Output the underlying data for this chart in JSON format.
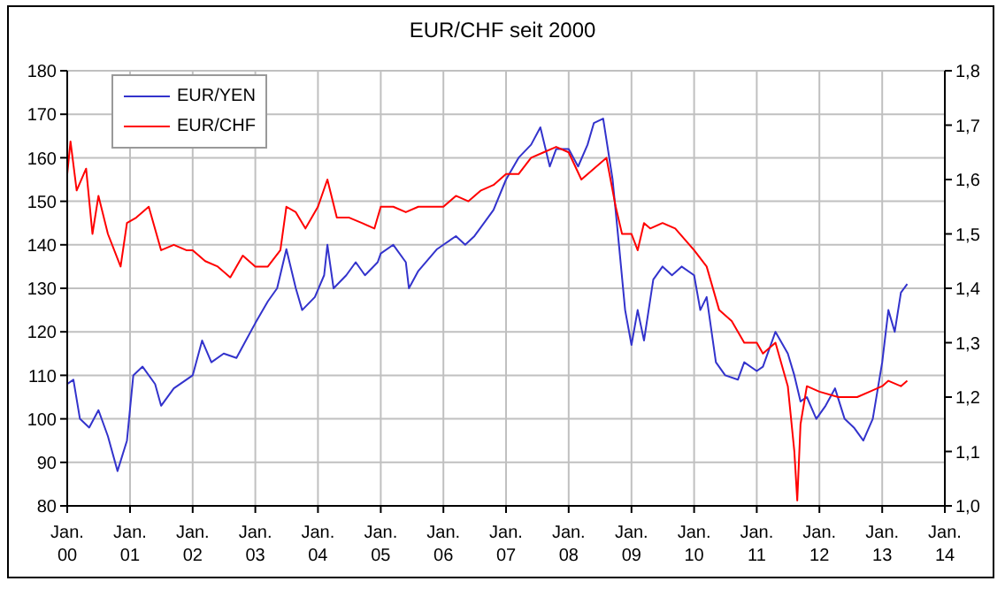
{
  "chart_data": {
    "type": "line",
    "title": "EUR/CHF seit 2000",
    "xlim": [
      "2000-01-01",
      "2014-01-01"
    ],
    "xticks": [
      {
        "value": "2000-01-01",
        "label": "Jan. 00"
      },
      {
        "value": "2001-01-01",
        "label": "Jan. 01"
      },
      {
        "value": "2002-01-01",
        "label": "Jan. 02"
      },
      {
        "value": "2003-01-01",
        "label": "Jan. 03"
      },
      {
        "value": "2004-01-01",
        "label": "Jan. 04"
      },
      {
        "value": "2005-01-01",
        "label": "Jan. 05"
      },
      {
        "value": "2006-01-01",
        "label": "Jan. 06"
      },
      {
        "value": "2007-01-01",
        "label": "Jan. 07"
      },
      {
        "value": "2008-01-01",
        "label": "Jan. 08"
      },
      {
        "value": "2009-01-01",
        "label": "Jan. 09"
      },
      {
        "value": "2010-01-01",
        "label": "Jan. 10"
      },
      {
        "value": "2011-01-01",
        "label": "Jan. 11"
      },
      {
        "value": "2012-01-01",
        "label": "Jan. 12"
      },
      {
        "value": "2013-01-01",
        "label": "Jan. 13"
      },
      {
        "value": "2014-01-01",
        "label": "Jan. 14"
      }
    ],
    "ylim": [
      80,
      180
    ],
    "yticks": [
      80,
      90,
      100,
      110,
      120,
      130,
      140,
      150,
      160,
      170,
      180
    ],
    "y2lim": [
      1.0,
      1.8
    ],
    "y2ticks": [
      {
        "value": 1.0,
        "label": "1,0"
      },
      {
        "value": 1.1,
        "label": "1,1"
      },
      {
        "value": 1.2,
        "label": "1,2"
      },
      {
        "value": 1.3,
        "label": "1,3"
      },
      {
        "value": 1.4,
        "label": "1,4"
      },
      {
        "value": 1.5,
        "label": "1,5"
      },
      {
        "value": 1.6,
        "label": "1,6"
      },
      {
        "value": 1.7,
        "label": "1,7"
      },
      {
        "value": 1.8,
        "label": "1,8"
      }
    ],
    "grid": true,
    "legend": "top left",
    "marker": "none",
    "line_style": "solid",
    "series": [
      {
        "name": "EUR/YEN",
        "color": "#3333cc",
        "x": [
          "2000-01-01",
          "2000-02-06",
          "2000-03-15",
          "2000-05-08",
          "2000-07-01",
          "2000-08-25",
          "2000-10-20",
          "2000-12-14",
          "2001-01-20",
          "2001-03-15",
          "2001-05-27",
          "2001-07-01",
          "2001-09-13",
          "2001-11-25",
          "2002-01-01",
          "2002-02-25",
          "2002-04-20",
          "2002-07-01",
          "2002-09-13",
          "2002-11-07",
          "2003-01-01",
          "2003-03-15",
          "2003-05-08",
          "2003-07-01",
          "2003-08-25",
          "2003-10-01",
          "2003-12-14",
          "2004-02-06",
          "2004-02-25",
          "2004-04-01",
          "2004-06-14",
          "2004-08-08",
          "2004-10-01",
          "2004-12-14",
          "2005-01-01",
          "2005-03-15",
          "2005-05-27",
          "2005-06-14",
          "2005-08-08",
          "2005-11-25",
          "2006-01-01",
          "2006-03-15",
          "2006-05-08",
          "2006-07-01",
          "2006-10-20",
          "2007-01-01",
          "2007-03-15",
          "2007-05-27",
          "2007-07-20",
          "2007-09-13",
          "2007-10-20",
          "2008-01-01",
          "2008-02-25",
          "2008-04-20",
          "2008-05-27",
          "2008-07-20",
          "2008-09-13",
          "2008-10-20",
          "2008-11-25",
          "2009-01-01",
          "2009-02-06",
          "2009-03-15",
          "2009-05-08",
          "2009-07-01",
          "2009-08-25",
          "2009-10-20",
          "2010-01-01",
          "2010-02-06",
          "2010-03-15",
          "2010-05-08",
          "2010-07-01",
          "2010-09-13",
          "2010-10-20",
          "2011-01-01",
          "2011-02-06",
          "2011-04-20",
          "2011-07-01",
          "2011-08-08",
          "2011-09-13",
          "2011-10-20",
          "2011-12-14",
          "2012-02-06",
          "2012-04-01",
          "2012-05-27",
          "2012-07-20",
          "2012-09-13",
          "2012-11-07",
          "2013-01-01",
          "2013-02-06",
          "2013-03-15",
          "2013-04-20",
          "2013-05-27"
        ],
        "values": [
          108,
          109,
          100,
          98,
          102,
          96,
          88,
          95,
          110,
          112,
          108,
          103,
          107,
          109,
          110,
          118,
          113,
          115,
          114,
          118,
          122,
          127,
          130,
          139,
          130,
          125,
          128,
          133,
          140,
          130,
          133,
          136,
          133,
          136,
          138,
          140,
          136,
          130,
          134,
          139,
          140,
          142,
          140,
          142,
          148,
          155,
          160,
          163,
          167,
          158,
          162,
          162,
          158,
          163,
          168,
          169,
          155,
          140,
          125,
          117,
          125,
          118,
          132,
          135,
          133,
          135,
          133,
          125,
          128,
          113,
          110,
          109,
          113,
          111,
          112,
          120,
          115,
          110,
          104,
          105,
          100,
          103,
          107,
          100,
          98,
          95,
          100,
          113,
          125,
          120,
          129,
          131
        ]
      },
      {
        "name": "EUR/CHF",
        "color": "#ff0000",
        "axis": "y2",
        "x": [
          "2000-01-01",
          "2000-01-20",
          "2000-02-25",
          "2000-04-20",
          "2000-05-27",
          "2000-07-01",
          "2000-08-25",
          "2000-11-07",
          "2000-12-14",
          "2001-02-06",
          "2001-04-20",
          "2001-07-01",
          "2001-09-13",
          "2001-11-25",
          "2002-01-01",
          "2002-03-15",
          "2002-05-27",
          "2002-08-08",
          "2002-10-20",
          "2003-01-01",
          "2003-03-15",
          "2003-05-27",
          "2003-07-01",
          "2003-08-25",
          "2003-10-20",
          "2004-01-01",
          "2004-02-25",
          "2004-04-20",
          "2004-07-01",
          "2004-09-13",
          "2004-11-25",
          "2005-01-01",
          "2005-03-15",
          "2005-05-27",
          "2005-08-08",
          "2005-10-20",
          "2006-01-01",
          "2006-03-15",
          "2006-05-27",
          "2006-08-08",
          "2006-10-20",
          "2007-01-01",
          "2007-03-15",
          "2007-05-27",
          "2007-08-08",
          "2007-10-20",
          "2008-01-01",
          "2008-03-15",
          "2008-05-27",
          "2008-08-08",
          "2008-10-01",
          "2008-11-07",
          "2009-01-01",
          "2009-02-06",
          "2009-03-15",
          "2009-04-20",
          "2009-07-01",
          "2009-09-13",
          "2010-01-01",
          "2010-03-15",
          "2010-05-27",
          "2010-08-08",
          "2010-10-20",
          "2011-01-01",
          "2011-02-06",
          "2011-04-20",
          "2011-07-01",
          "2011-08-08",
          "2011-08-25",
          "2011-09-13",
          "2011-10-20",
          "2012-01-01",
          "2012-04-20",
          "2012-08-08",
          "2012-10-20",
          "2013-01-01",
          "2013-02-06",
          "2013-04-20",
          "2013-05-27"
        ],
        "values": [
          1.61,
          1.67,
          1.58,
          1.62,
          1.5,
          1.57,
          1.5,
          1.44,
          1.52,
          1.53,
          1.55,
          1.47,
          1.48,
          1.47,
          1.47,
          1.45,
          1.44,
          1.42,
          1.46,
          1.44,
          1.44,
          1.47,
          1.55,
          1.54,
          1.51,
          1.55,
          1.6,
          1.53,
          1.53,
          1.52,
          1.51,
          1.55,
          1.55,
          1.54,
          1.55,
          1.55,
          1.55,
          1.57,
          1.56,
          1.58,
          1.59,
          1.61,
          1.61,
          1.64,
          1.65,
          1.66,
          1.65,
          1.6,
          1.62,
          1.64,
          1.55,
          1.5,
          1.5,
          1.47,
          1.52,
          1.51,
          1.52,
          1.51,
          1.47,
          1.44,
          1.36,
          1.34,
          1.3,
          1.3,
          1.28,
          1.3,
          1.22,
          1.1,
          1.01,
          1.15,
          1.22,
          1.21,
          1.2,
          1.2,
          1.21,
          1.22,
          1.23,
          1.22,
          1.23
        ]
      }
    ]
  }
}
